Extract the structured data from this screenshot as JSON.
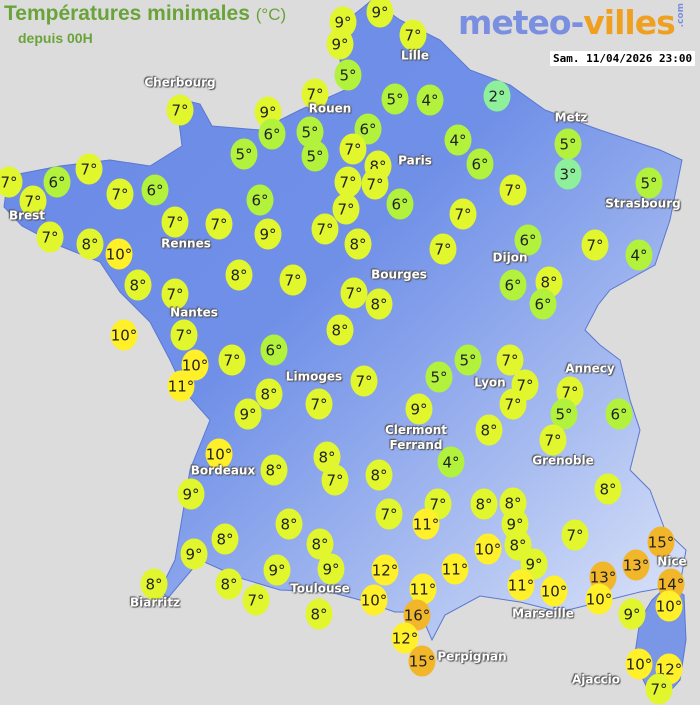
{
  "header": {
    "title": "Températures minimales",
    "title_unit": "(°C)",
    "subtitle": "depuis 00H",
    "logo_main": "meteo-",
    "logo_accent": "villes",
    "logo_suffix": ".com",
    "timestamp": "Sam. 11/04/2026 23:00"
  },
  "colors": {
    "background": "#dcdcdc",
    "land": "#6f8ee8",
    "cold": "#8ef09a",
    "cool": "#b2f23c",
    "mild": "#e2f62e",
    "warm": "#fff02a",
    "hot": "#f2b62a"
  },
  "cities": [
    {
      "name": "Cherbourg"
    },
    {
      "name": "Lille"
    },
    {
      "name": "Rouen"
    },
    {
      "name": "Paris"
    },
    {
      "name": "Metz"
    },
    {
      "name": "Strasbourg"
    },
    {
      "name": "Brest"
    },
    {
      "name": "Rennes"
    },
    {
      "name": "Dijon"
    },
    {
      "name": "Bourges"
    },
    {
      "name": "Nantes"
    },
    {
      "name": "Limoges"
    },
    {
      "name": "Annecy"
    },
    {
      "name": "Clermont Ferrand"
    },
    {
      "name": "Lyon"
    },
    {
      "name": "Grenoble"
    },
    {
      "name": "Bordeaux"
    },
    {
      "name": "Biarritz"
    },
    {
      "name": "Toulouse"
    },
    {
      "name": "Marseille"
    },
    {
      "name": "Perpignan"
    },
    {
      "name": "Nice"
    },
    {
      "name": "Ajaccio"
    }
  ],
  "unit_symbol": "°",
  "temperatures": [
    9,
    9,
    7,
    9,
    5,
    7,
    5,
    4,
    2,
    7,
    9,
    6,
    5,
    6,
    5,
    5,
    7,
    4,
    5,
    8,
    6,
    7,
    7,
    6,
    7,
    7,
    6,
    7,
    7,
    6,
    3,
    7,
    5,
    6,
    7,
    7,
    7,
    7,
    7,
    9,
    7,
    8,
    10,
    8,
    7,
    6,
    7,
    4,
    8,
    8,
    7,
    7,
    7,
    8,
    6,
    8,
    6,
    10,
    7,
    8,
    6,
    7,
    10,
    11,
    5,
    7,
    7,
    5,
    7,
    7,
    8,
    7,
    9,
    9,
    7,
    5,
    6,
    8,
    7,
    10,
    4,
    8,
    8,
    7,
    8,
    8,
    9,
    7,
    7,
    8,
    8,
    11,
    9,
    8,
    8,
    7,
    8,
    8,
    10,
    15,
    9,
    13,
    9,
    9,
    9,
    12,
    11,
    13,
    14,
    11,
    8,
    8,
    11,
    10,
    7,
    10,
    10,
    10,
    9,
    8,
    16,
    12,
    15,
    10,
    12,
    7
  ]
}
